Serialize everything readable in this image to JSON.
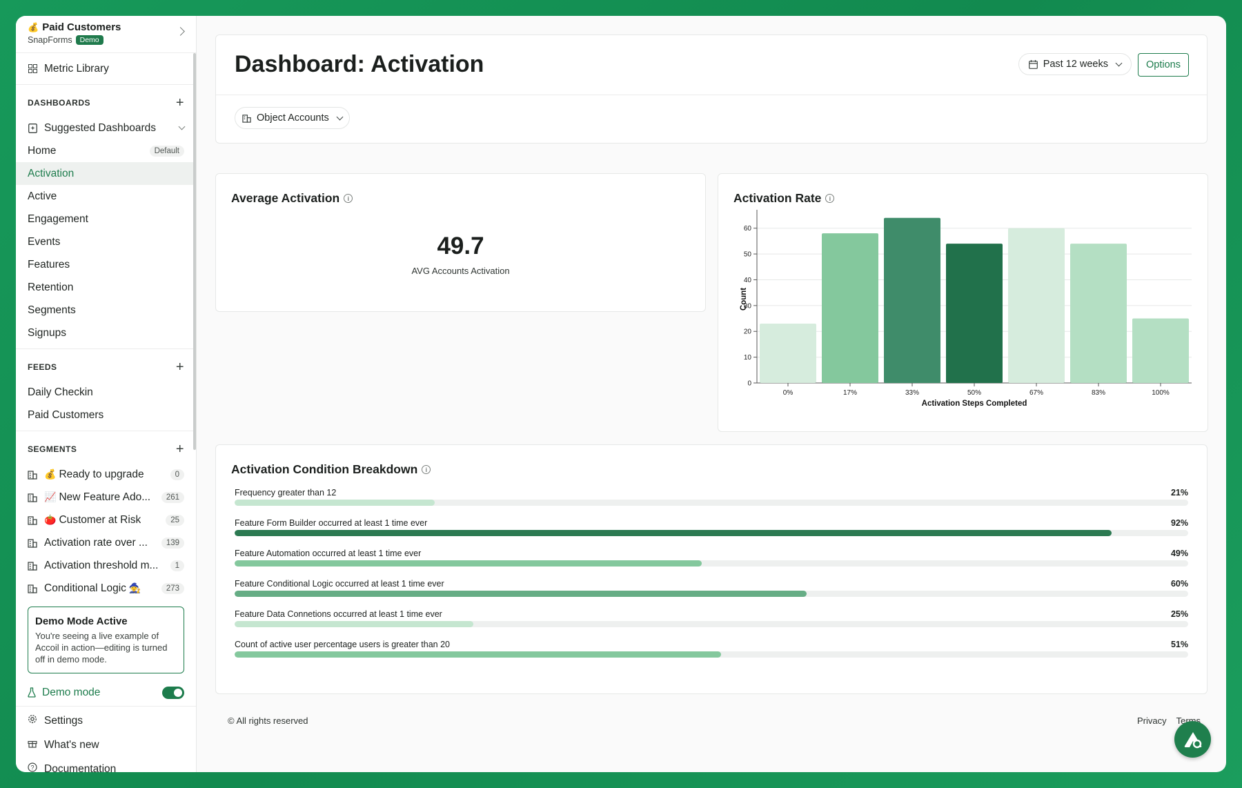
{
  "sidebar": {
    "org_emoji": "💰",
    "org_name": "Paid Customers",
    "workspace": "SnapForms",
    "workspace_badge": "Demo",
    "metric_library": "Metric Library",
    "dashboards_header": "DASHBOARDS",
    "suggested": "Suggested Dashboards",
    "dashboards": [
      {
        "label": "Home",
        "badge": "Default"
      },
      {
        "label": "Activation"
      },
      {
        "label": "Active"
      },
      {
        "label": "Engagement"
      },
      {
        "label": "Events"
      },
      {
        "label": "Features"
      },
      {
        "label": "Retention"
      },
      {
        "label": "Segments"
      },
      {
        "label": "Signups"
      }
    ],
    "feeds_header": "FEEDS",
    "feeds": [
      "Daily Checkin",
      "Paid Customers"
    ],
    "segments_header": "SEGMENTS",
    "segments": [
      {
        "emoji": "💰",
        "label": "Ready to upgrade",
        "count": "0"
      },
      {
        "emoji": "📈",
        "label": "New Feature Ado...",
        "count": "261"
      },
      {
        "emoji": "🍅",
        "label": "Customer at Risk",
        "count": "25"
      },
      {
        "emoji": "",
        "label": "Activation rate over ...",
        "count": "139"
      },
      {
        "emoji": "",
        "label": "Activation threshold m...",
        "count": "1"
      },
      {
        "emoji": "🧙",
        "label": "Conditional Logic",
        "count": "273"
      }
    ],
    "demo_card_title": "Demo Mode Active",
    "demo_card_text": "You're seeing a live example of Accoil in action—editing is turned off in demo mode.",
    "demo_mode": "Demo mode",
    "footer": [
      "Settings",
      "What's new",
      "Documentation"
    ]
  },
  "header": {
    "title": "Dashboard: Activation",
    "date_range": "Past 12 weeks",
    "options": "Options",
    "object_filter": "Object Accounts"
  },
  "average": {
    "title": "Average Activation",
    "value": "49.7",
    "caption": "AVG Accounts Activation"
  },
  "rate": {
    "title": "Activation Rate"
  },
  "chart_data": {
    "type": "bar",
    "categories": [
      "0%",
      "17%",
      "33%",
      "50%",
      "67%",
      "83%",
      "100%"
    ],
    "values": [
      23,
      58,
      64,
      54,
      60,
      54,
      25
    ],
    "colors": [
      "#d6ecdd",
      "#84c89d",
      "#3f8c6a",
      "#21714b",
      "#d6ecdd",
      "#b4dfc3",
      "#b4dfc3"
    ],
    "xlabel": "Activation Steps Completed",
    "ylabel": "Count",
    "ylim": [
      0,
      65
    ],
    "yticks": [
      0,
      10,
      20,
      30,
      40,
      50,
      60
    ],
    "grid": true
  },
  "breakdown": {
    "title": "Activation Condition Breakdown",
    "rows": [
      {
        "label": "Frequency greater than 12",
        "pct": "21%",
        "value": 21,
        "color": "#c5e6d0"
      },
      {
        "label": "Feature Form Builder occurred at least 1 time ever",
        "pct": "92%",
        "value": 92,
        "color": "#2c7a52"
      },
      {
        "label": "Feature Automation occurred at least 1 time ever",
        "pct": "49%",
        "value": 49,
        "color": "#84c89d"
      },
      {
        "label": "Feature Conditional Logic occurred at least 1 time ever",
        "pct": "60%",
        "value": 60,
        "color": "#66ad85"
      },
      {
        "label": "Feature Data Connetions occurred at least 1 time ever",
        "pct": "25%",
        "value": 25,
        "color": "#c5e6d0"
      },
      {
        "label": "Count of active user percentage users is greater than 20",
        "pct": "51%",
        "value": 51,
        "color": "#84c89d"
      }
    ]
  },
  "footer": {
    "copyright": "© All rights reserved",
    "privacy": "Privacy",
    "terms": "Terms"
  }
}
